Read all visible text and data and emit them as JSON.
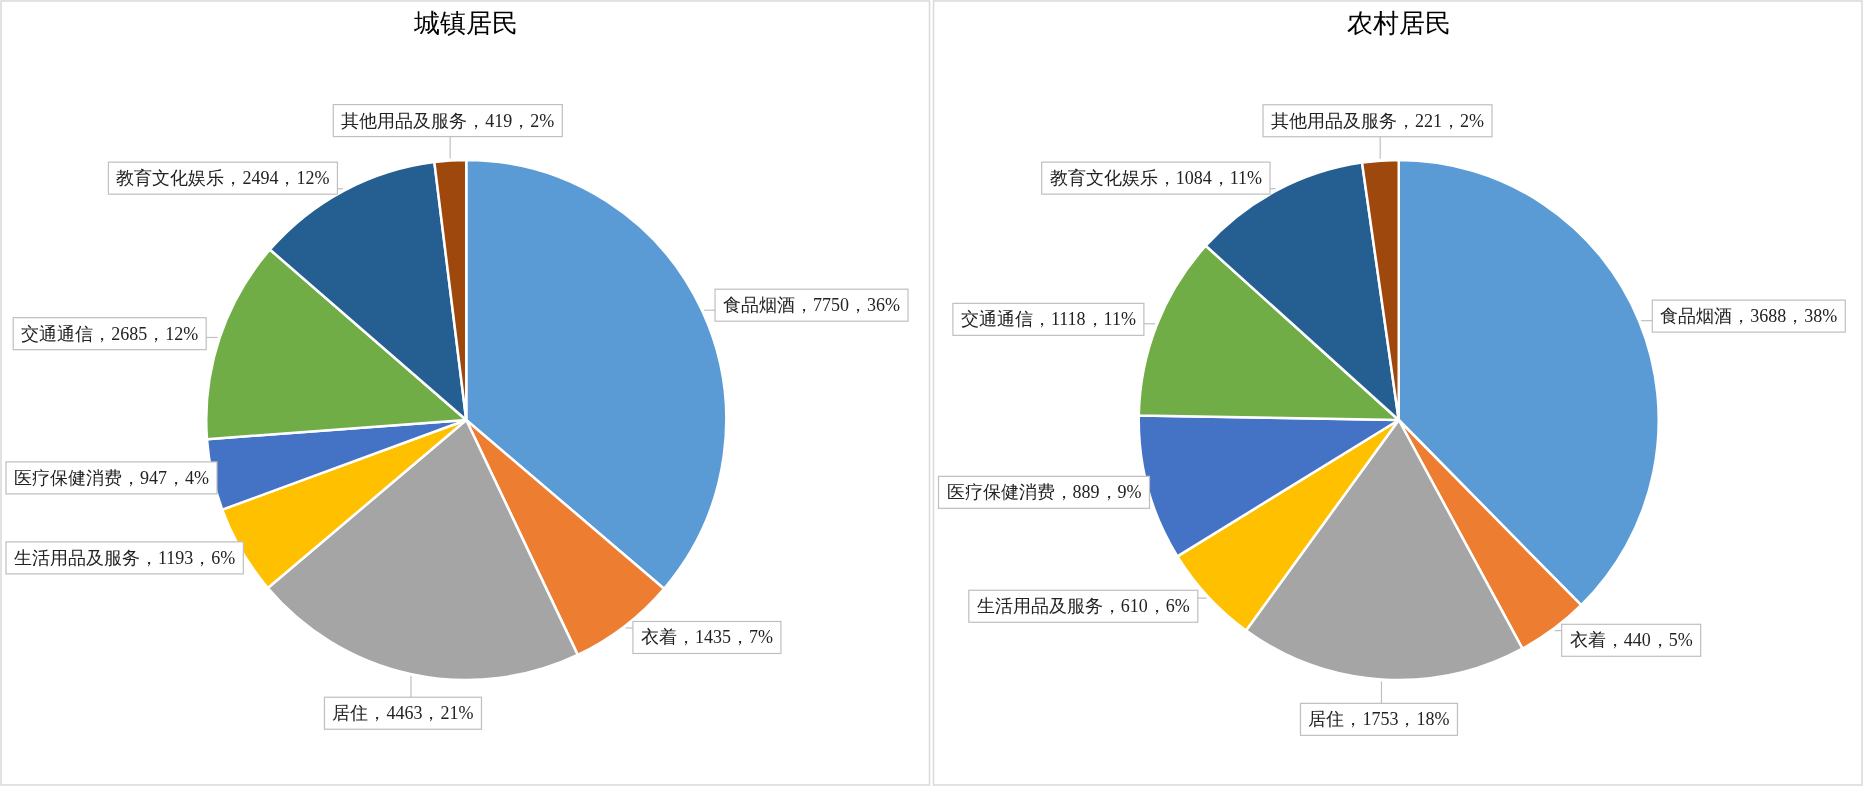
{
  "chart_data": [
    {
      "type": "pie",
      "title": "城镇居民",
      "categories": [
        "食品烟酒",
        "衣着",
        "居住",
        "生活用品及服务",
        "医疗保健消费",
        "交通通信",
        "教育文化娱乐",
        "其他用品及服务"
      ],
      "values": [
        7750,
        1435,
        4463,
        1193,
        947,
        2685,
        2494,
        419
      ],
      "value_labels": [
        "，7750，36%",
        "，1435，7%",
        "，4463，21%",
        "，1193，6%",
        "，947，4%",
        "，2685，12%",
        "，2494，12%",
        "，419，2%"
      ],
      "colors": [
        "#5b9bd5",
        "#ed7d31",
        "#a5a5a5",
        "#ffc000",
        "#4472c4",
        "#70ad47",
        "#255e91",
        "#9e480e"
      ]
    },
    {
      "type": "pie",
      "title": "农村居民",
      "categories": [
        "食品烟酒",
        "衣着",
        "居住",
        "生活用品及服务",
        "医疗保健消费",
        "交通通信",
        "教育文化娱乐",
        "其他用品及服务"
      ],
      "values": [
        3688,
        440,
        1753,
        610,
        889,
        1118,
        1084,
        221
      ],
      "value_labels": [
        "，3688，38%",
        "，440，5%",
        "，1753，18%",
        "，610，6%",
        "，889，9%",
        "，1118，11%",
        "，1084，11%",
        "，221，2%"
      ],
      "colors": [
        "#5b9bd5",
        "#ed7d31",
        "#a5a5a5",
        "#ffc000",
        "#4472c4",
        "#70ad47",
        "#255e91",
        "#9e480e"
      ]
    }
  ]
}
